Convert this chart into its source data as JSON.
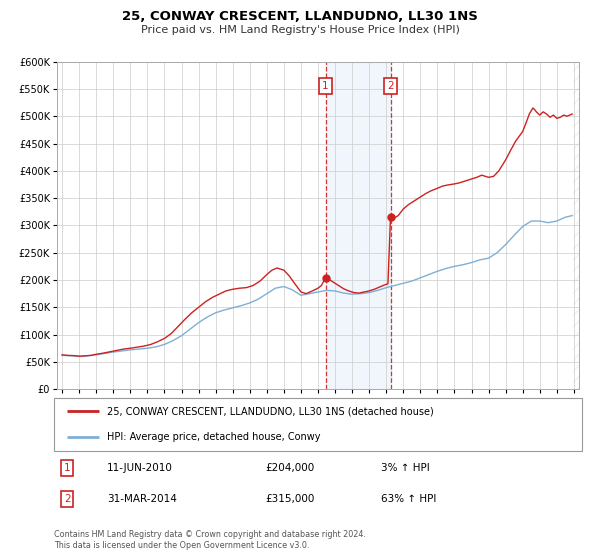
{
  "title": "25, CONWAY CRESCENT, LLANDUDNO, LL30 1NS",
  "subtitle": "Price paid vs. HM Land Registry's House Price Index (HPI)",
  "legend_label1": "25, CONWAY CRESCENT, LLANDUDNO, LL30 1NS (detached house)",
  "legend_label2": "HPI: Average price, detached house, Conwy",
  "annotation1_label": "1",
  "annotation1_date": "11-JUN-2010",
  "annotation1_price": "£204,000",
  "annotation1_hpi": "3% ↑ HPI",
  "annotation2_label": "2",
  "annotation2_date": "31-MAR-2014",
  "annotation2_price": "£315,000",
  "annotation2_hpi": "63% ↑ HPI",
  "footnote1": "Contains HM Land Registry data © Crown copyright and database right 2024.",
  "footnote2": "This data is licensed under the Open Government Licence v3.0.",
  "ylim": [
    0,
    600000
  ],
  "xlim_start": 1994.7,
  "xlim_end": 2025.3,
  "line1_color": "#cc2222",
  "line2_color": "#7fafd4",
  "marker_color": "#cc2222",
  "vline_color": "#cc2222",
  "shade_color": "#d6e8f5",
  "box_color": "#cc2222",
  "background_color": "#ffffff",
  "grid_color": "#cccccc",
  "sale1_x": 2010.44,
  "sale1_y": 204000,
  "sale2_x": 2014.25,
  "sale2_y": 315000,
  "hpi_line2": [
    [
      1995.0,
      62000
    ],
    [
      1995.3,
      61500
    ],
    [
      1995.6,
      61000
    ],
    [
      1996.0,
      60000
    ],
    [
      1996.3,
      60500
    ],
    [
      1996.6,
      61500
    ],
    [
      1997.0,
      63000
    ],
    [
      1997.5,
      65500
    ],
    [
      1998.0,
      68000
    ],
    [
      1998.5,
      70000
    ],
    [
      1999.0,
      72000
    ],
    [
      1999.5,
      73500
    ],
    [
      2000.0,
      75000
    ],
    [
      2000.5,
      77500
    ],
    [
      2001.0,
      82000
    ],
    [
      2001.5,
      89000
    ],
    [
      2002.0,
      98000
    ],
    [
      2002.5,
      110000
    ],
    [
      2003.0,
      122000
    ],
    [
      2003.5,
      132000
    ],
    [
      2004.0,
      140000
    ],
    [
      2004.5,
      145000
    ],
    [
      2005.0,
      149000
    ],
    [
      2005.5,
      153000
    ],
    [
      2006.0,
      158000
    ],
    [
      2006.5,
      165000
    ],
    [
      2007.0,
      175000
    ],
    [
      2007.5,
      185000
    ],
    [
      2008.0,
      188000
    ],
    [
      2008.5,
      182000
    ],
    [
      2009.0,
      172000
    ],
    [
      2009.5,
      175000
    ],
    [
      2010.0,
      178000
    ],
    [
      2010.5,
      181000
    ],
    [
      2011.0,
      180000
    ],
    [
      2011.5,
      176000
    ],
    [
      2012.0,
      174000
    ],
    [
      2012.5,
      175000
    ],
    [
      2013.0,
      177000
    ],
    [
      2013.5,
      181000
    ],
    [
      2014.0,
      186000
    ],
    [
      2014.5,
      190000
    ],
    [
      2015.0,
      194000
    ],
    [
      2015.5,
      198000
    ],
    [
      2016.0,
      204000
    ],
    [
      2016.5,
      210000
    ],
    [
      2017.0,
      216000
    ],
    [
      2017.5,
      221000
    ],
    [
      2018.0,
      225000
    ],
    [
      2018.5,
      228000
    ],
    [
      2019.0,
      232000
    ],
    [
      2019.5,
      237000
    ],
    [
      2020.0,
      240000
    ],
    [
      2020.5,
      250000
    ],
    [
      2021.0,
      265000
    ],
    [
      2021.5,
      282000
    ],
    [
      2022.0,
      298000
    ],
    [
      2022.5,
      308000
    ],
    [
      2023.0,
      308000
    ],
    [
      2023.5,
      305000
    ],
    [
      2024.0,
      308000
    ],
    [
      2024.5,
      315000
    ],
    [
      2024.9,
      318000
    ]
  ],
  "hpi_line1": [
    [
      1995.0,
      63000
    ],
    [
      1995.3,
      62000
    ],
    [
      1995.7,
      61500
    ],
    [
      1996.0,
      60500
    ],
    [
      1996.3,
      61000
    ],
    [
      1996.7,
      62000
    ],
    [
      1997.0,
      64000
    ],
    [
      1997.4,
      66000
    ],
    [
      1997.8,
      68500
    ],
    [
      1998.2,
      71000
    ],
    [
      1998.6,
      73500
    ],
    [
      1999.0,
      75000
    ],
    [
      1999.4,
      77000
    ],
    [
      1999.8,
      79000
    ],
    [
      2000.2,
      82000
    ],
    [
      2000.6,
      87000
    ],
    [
      2001.0,
      93000
    ],
    [
      2001.4,
      102000
    ],
    [
      2001.8,
      115000
    ],
    [
      2002.2,
      128000
    ],
    [
      2002.6,
      140000
    ],
    [
      2003.0,
      150000
    ],
    [
      2003.4,
      160000
    ],
    [
      2003.8,
      168000
    ],
    [
      2004.2,
      174000
    ],
    [
      2004.6,
      180000
    ],
    [
      2005.0,
      183000
    ],
    [
      2005.4,
      185000
    ],
    [
      2005.8,
      186000
    ],
    [
      2006.2,
      190000
    ],
    [
      2006.6,
      198000
    ],
    [
      2007.0,
      210000
    ],
    [
      2007.3,
      218000
    ],
    [
      2007.6,
      222000
    ],
    [
      2008.0,
      218000
    ],
    [
      2008.3,
      208000
    ],
    [
      2008.6,
      195000
    ],
    [
      2009.0,
      178000
    ],
    [
      2009.3,
      175000
    ],
    [
      2009.6,
      179000
    ],
    [
      2010.0,
      185000
    ],
    [
      2010.2,
      190000
    ],
    [
      2010.44,
      204000
    ],
    [
      2010.6,
      202000
    ],
    [
      2010.9,
      196000
    ],
    [
      2011.2,
      190000
    ],
    [
      2011.5,
      184000
    ],
    [
      2011.8,
      180000
    ],
    [
      2012.1,
      177000
    ],
    [
      2012.4,
      176000
    ],
    [
      2012.7,
      178000
    ],
    [
      2013.0,
      180000
    ],
    [
      2013.3,
      183000
    ],
    [
      2013.6,
      187000
    ],
    [
      2013.9,
      191000
    ],
    [
      2014.1,
      193000
    ],
    [
      2014.25,
      315000
    ],
    [
      2014.4,
      312000
    ],
    [
      2014.7,
      318000
    ],
    [
      2015.0,
      330000
    ],
    [
      2015.3,
      338000
    ],
    [
      2015.6,
      344000
    ],
    [
      2016.0,
      352000
    ],
    [
      2016.3,
      358000
    ],
    [
      2016.6,
      363000
    ],
    [
      2017.0,
      368000
    ],
    [
      2017.3,
      372000
    ],
    [
      2017.6,
      374000
    ],
    [
      2018.0,
      376000
    ],
    [
      2018.3,
      378000
    ],
    [
      2018.6,
      381000
    ],
    [
      2019.0,
      385000
    ],
    [
      2019.3,
      388000
    ],
    [
      2019.6,
      392000
    ],
    [
      2020.0,
      388000
    ],
    [
      2020.3,
      390000
    ],
    [
      2020.6,
      400000
    ],
    [
      2021.0,
      420000
    ],
    [
      2021.3,
      438000
    ],
    [
      2021.6,
      455000
    ],
    [
      2022.0,
      472000
    ],
    [
      2022.2,
      488000
    ],
    [
      2022.4,
      505000
    ],
    [
      2022.6,
      515000
    ],
    [
      2022.7,
      512000
    ],
    [
      2022.8,
      508000
    ],
    [
      2023.0,
      502000
    ],
    [
      2023.2,
      508000
    ],
    [
      2023.4,
      504000
    ],
    [
      2023.6,
      498000
    ],
    [
      2023.8,
      502000
    ],
    [
      2024.0,
      496000
    ],
    [
      2024.2,
      498000
    ],
    [
      2024.4,
      502000
    ],
    [
      2024.6,
      500000
    ],
    [
      2024.9,
      504000
    ]
  ]
}
